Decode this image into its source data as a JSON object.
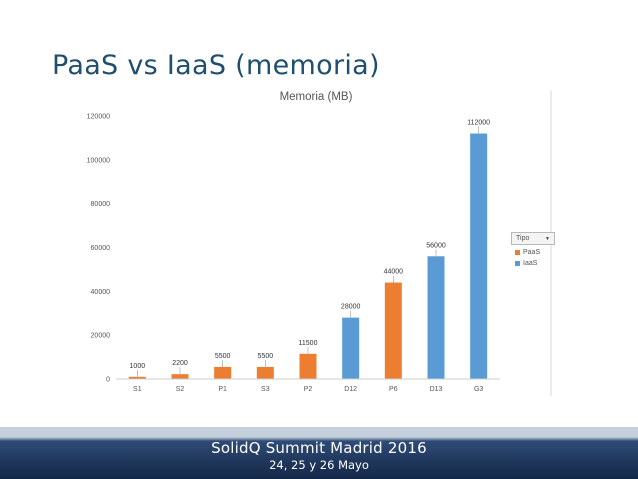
{
  "slide": {
    "title": "PaaS vs IaaS (memoria)"
  },
  "legend": {
    "header": "Tipo",
    "caret": "▼",
    "items": [
      {
        "label": "PaaS",
        "color": "#ed7d31"
      },
      {
        "label": "IaaS",
        "color": "#5b9bd5"
      }
    ]
  },
  "footer": {
    "line1": "SolidQ Summit Madrid 2016",
    "line2": "24, 25 y 26 Mayo"
  },
  "chart_data": {
    "type": "bar",
    "title": "Memoria (MB)",
    "xlabel": "",
    "ylabel": "",
    "categories": [
      "S1",
      "S2",
      "P1",
      "S3",
      "P2",
      "D12",
      "P6",
      "D13",
      "G3"
    ],
    "values": [
      1000,
      2200,
      5500,
      5500,
      11500,
      28000,
      44000,
      56000,
      112000
    ],
    "bar_types": [
      "PaaS",
      "PaaS",
      "PaaS",
      "PaaS",
      "PaaS",
      "IaaS",
      "PaaS",
      "IaaS",
      "IaaS"
    ],
    "series_colors": {
      "PaaS": "#ed7d31",
      "IaaS": "#5b9bd5"
    },
    "ylim": [
      0,
      120000
    ],
    "yticks": [
      0,
      20000,
      40000,
      60000,
      80000,
      100000,
      120000
    ],
    "grid": false,
    "legend_position": "right"
  }
}
